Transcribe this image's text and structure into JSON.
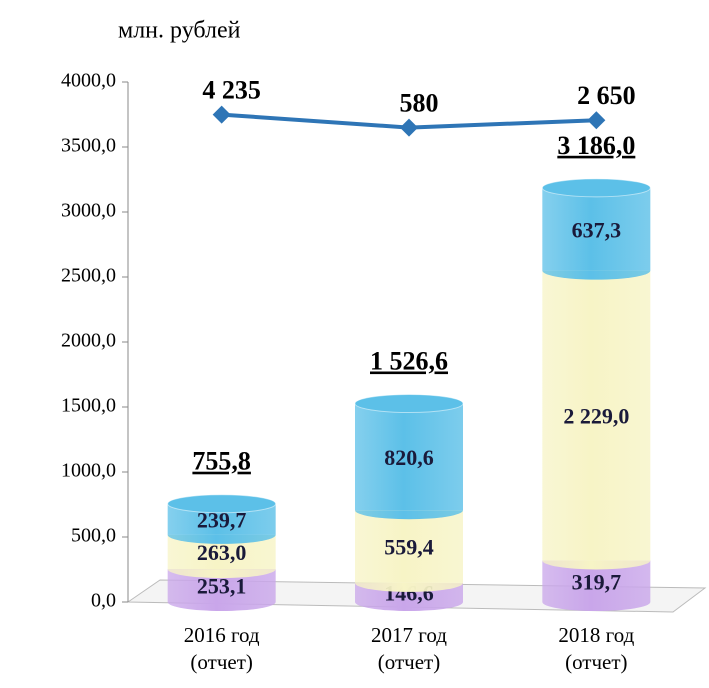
{
  "chart_data": {
    "type": "bar",
    "y_axis_label": "млн. рублей",
    "categories": [
      "2016 год\n(отчет)",
      "2017 год\n(отчет)",
      "2018 год\n(отчет)"
    ],
    "series": [
      {
        "color": "#c9a6ea",
        "values": [
          253.1,
          146.6,
          319.7
        ],
        "value_labels": [
          "253,1",
          "146,6",
          "319,7"
        ]
      },
      {
        "color": "#f7f4c6",
        "values": [
          263.0,
          559.4,
          2229.0
        ],
        "value_labels": [
          "263,0",
          "559,4",
          "2 229,0"
        ]
      },
      {
        "color": "#5cc0e8",
        "values": [
          239.7,
          820.6,
          637.3
        ],
        "value_labels": [
          "239,7",
          "820,6",
          "637,3"
        ]
      },
      {
        "type": "line",
        "axis": "y2",
        "color": "#2e75b6",
        "values": [
          4235,
          580,
          2650
        ],
        "value_labels": [
          "4 235",
          "580",
          "2 650"
        ]
      }
    ],
    "totals": [
      755.8,
      1526.6,
      3186.0
    ],
    "total_labels": [
      "755,8",
      "1 526,6",
      "3 186,0"
    ],
    "ylim": [
      0,
      4000
    ],
    "yticks": [
      {
        "value": 0,
        "label": "0,0"
      },
      {
        "value": 500,
        "label": "500,0"
      },
      {
        "value": 1000,
        "label": "1000,0"
      },
      {
        "value": 1500,
        "label": "1500,0"
      },
      {
        "value": 2000,
        "label": "2000,0"
      },
      {
        "value": 2500,
        "label": "2500,0"
      },
      {
        "value": 3000,
        "label": "3000,0"
      },
      {
        "value": 3500,
        "label": "3500,0"
      },
      {
        "value": 4000,
        "label": "4000,0"
      }
    ],
    "y2lim": [
      -132800,
      13400
    ]
  }
}
